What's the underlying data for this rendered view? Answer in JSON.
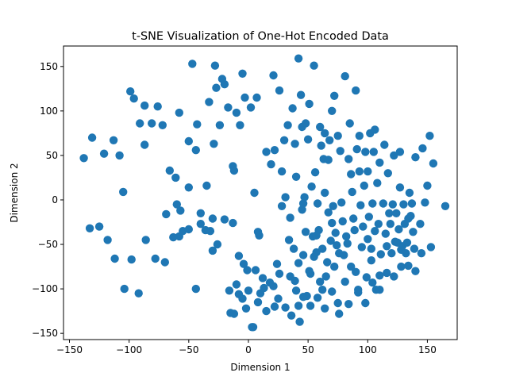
{
  "chart_data": {
    "type": "scatter",
    "title": "t-SNE Visualization of One-Hot Encoded Data",
    "xlabel": "Dimension 1",
    "ylabel": "Dimension 2",
    "xlim": [
      -155,
      175
    ],
    "ylim": [
      -157,
      173
    ],
    "xticks": [
      -150,
      -100,
      -50,
      0,
      50,
      100,
      150
    ],
    "yticks": [
      -150,
      -100,
      -50,
      0,
      50,
      100,
      150
    ],
    "xtick_labels": [
      "−150",
      "−100",
      "−50",
      "0",
      "50",
      "100",
      "150"
    ],
    "ytick_labels": [
      "−150",
      "−100",
      "−50",
      "0",
      "50",
      "100",
      "150"
    ],
    "grid": false,
    "legend": "none",
    "point_color": "#1f77b4",
    "series": [
      {
        "points": [
          [
            -138,
            47
          ],
          [
            -131,
            70
          ],
          [
            -121,
            52
          ],
          [
            -113,
            67
          ],
          [
            -108,
            50
          ],
          [
            -105,
            9
          ],
          [
            -99,
            122
          ],
          [
            -96,
            114
          ],
          [
            -91,
            86
          ],
          [
            -87,
            106
          ],
          [
            -87,
            62
          ],
          [
            -81,
            86
          ],
          [
            -76,
            105
          ],
          [
            -72,
            84
          ],
          [
            -69,
            -16
          ],
          [
            -66,
            33
          ],
          [
            -61,
            25
          ],
          [
            -60,
            -5
          ],
          [
            -58,
            98
          ],
          [
            -58,
            -41
          ],
          [
            -55,
            -35
          ],
          [
            -50,
            14
          ],
          [
            -50,
            66
          ],
          [
            -47,
            153
          ],
          [
            -44,
            56
          ],
          [
            -43,
            85
          ],
          [
            -40,
            -15
          ],
          [
            -35,
            16
          ],
          [
            -33,
            110
          ],
          [
            -32,
            -35
          ],
          [
            -30,
            -57
          ],
          [
            -30,
            -21
          ],
          [
            -29,
            63
          ],
          [
            -28,
            151
          ],
          [
            -27,
            126
          ],
          [
            -24,
            84
          ],
          [
            -22,
            136
          ],
          [
            -20,
            130
          ],
          [
            -17,
            104
          ],
          [
            -15,
            -127
          ],
          [
            -13,
            38
          ],
          [
            -13,
            -26
          ],
          [
            -12,
            33
          ],
          [
            -10,
            98
          ],
          [
            -10,
            -95
          ],
          [
            -8,
            -106
          ],
          [
            -7,
            84
          ],
          [
            -5,
            -111
          ],
          [
            -5,
            142
          ],
          [
            -3,
            115
          ],
          [
            -2,
            -122
          ],
          [
            0,
            -102
          ],
          [
            2,
            104
          ],
          [
            3,
            -143
          ],
          [
            5,
            8
          ],
          [
            6,
            -79
          ],
          [
            7,
            115
          ],
          [
            8,
            -115
          ],
          [
            8,
            -36
          ],
          [
            9,
            -40
          ],
          [
            12,
            -88
          ],
          [
            13,
            -99
          ],
          [
            15,
            -125
          ],
          [
            15,
            54
          ],
          [
            19,
            40
          ],
          [
            21,
            140
          ],
          [
            21,
            -97
          ],
          [
            22,
            -120
          ],
          [
            22,
            56
          ],
          [
            24,
            -72
          ],
          [
            26,
            -83
          ],
          [
            26,
            123
          ],
          [
            28,
            32
          ],
          [
            28,
            -7
          ],
          [
            30,
            67
          ],
          [
            31,
            3
          ],
          [
            33,
            84
          ],
          [
            34,
            -45
          ],
          [
            35,
            -86
          ],
          [
            35,
            -20
          ],
          [
            37,
            103
          ],
          [
            38,
            -55
          ],
          [
            39,
            63
          ],
          [
            39,
            -91
          ],
          [
            40,
            -102
          ],
          [
            40,
            26
          ],
          [
            42,
            -119
          ],
          [
            42,
            159
          ],
          [
            42,
            -71
          ],
          [
            43,
            -137
          ],
          [
            44,
            118
          ],
          [
            45,
            -11
          ],
          [
            45,
            82
          ],
          [
            46,
            -62
          ],
          [
            46,
            -4
          ],
          [
            47,
            3
          ],
          [
            48,
            -36
          ],
          [
            48,
            86
          ],
          [
            49,
            -108
          ],
          [
            50,
            68
          ],
          [
            51,
            -80
          ],
          [
            51,
            108
          ],
          [
            52,
            -83
          ],
          [
            53,
            15
          ],
          [
            54,
            -41
          ],
          [
            55,
            -64
          ],
          [
            55,
            151
          ],
          [
            56,
            31
          ],
          [
            57,
            -40
          ],
          [
            57,
            -59
          ],
          [
            58,
            -4
          ],
          [
            59,
            -34
          ],
          [
            60,
            82
          ],
          [
            61,
            61
          ],
          [
            62,
            -55
          ],
          [
            62,
            -101
          ],
          [
            63,
            46
          ],
          [
            64,
            8
          ],
          [
            64,
            75
          ],
          [
            65,
            -86
          ],
          [
            66,
            -70
          ],
          [
            67,
            -14
          ],
          [
            67,
            45
          ],
          [
            68,
            67
          ],
          [
            69,
            -46
          ],
          [
            70,
            -26
          ],
          [
            70,
            100
          ],
          [
            71,
            -7
          ],
          [
            72,
            -75
          ],
          [
            72,
            117
          ],
          [
            73,
            -37
          ],
          [
            74,
            -51
          ],
          [
            75,
            -116
          ],
          [
            75,
            72
          ],
          [
            76,
            -60
          ],
          [
            77,
            55
          ],
          [
            78,
            -3
          ],
          [
            79,
            -24
          ],
          [
            80,
            -62
          ],
          [
            81,
            139
          ],
          [
            81,
            -92
          ],
          [
            82,
            -41
          ],
          [
            83,
            -49
          ],
          [
            84,
            46
          ],
          [
            85,
            86
          ],
          [
            86,
            -75
          ],
          [
            86,
            29
          ],
          [
            87,
            9
          ],
          [
            88,
            -21
          ],
          [
            89,
            -34
          ],
          [
            90,
            -81
          ],
          [
            90,
            123
          ],
          [
            91,
            57
          ],
          [
            92,
            -101
          ],
          [
            93,
            72
          ],
          [
            93,
            32
          ],
          [
            94,
            -6
          ],
          [
            95,
            -53
          ],
          [
            96,
            -30
          ],
          [
            97,
            16
          ],
          [
            98,
            54
          ],
          [
            99,
            -87
          ],
          [
            100,
            -44
          ],
          [
            100,
            32
          ],
          [
            101,
            -19
          ],
          [
            102,
            75
          ],
          [
            103,
            -68
          ],
          [
            103,
            -55
          ],
          [
            104,
            -4
          ],
          [
            105,
            54
          ],
          [
            106,
            -35
          ],
          [
            106,
            79
          ],
          [
            107,
            -101
          ],
          [
            108,
            19
          ],
          [
            109,
            -27
          ],
          [
            110,
            -85
          ],
          [
            110,
            42
          ],
          [
            111,
            -61
          ],
          [
            113,
            -4
          ],
          [
            114,
            62
          ],
          [
            115,
            -38
          ],
          [
            116,
            -52
          ],
          [
            117,
            30
          ],
          [
            118,
            -15
          ],
          [
            119,
            -27
          ],
          [
            120,
            -60
          ],
          [
            121,
            -5
          ],
          [
            122,
            50
          ],
          [
            123,
            -47
          ],
          [
            124,
            -15
          ],
          [
            125,
            -48
          ],
          [
            126,
            -33
          ],
          [
            127,
            14
          ],
          [
            127,
            54
          ],
          [
            128,
            -56
          ],
          [
            129,
            -52
          ],
          [
            130,
            -5
          ],
          [
            131,
            -27
          ],
          [
            132,
            -60
          ],
          [
            133,
            -48
          ],
          [
            134,
            -21
          ],
          [
            135,
            8
          ],
          [
            136,
            -18
          ],
          [
            137,
            -4
          ],
          [
            138,
            -36
          ],
          [
            139,
            -55
          ],
          [
            140,
            48
          ],
          [
            144,
            -27
          ],
          [
            146,
            58
          ],
          [
            148,
            -3
          ],
          [
            150,
            16
          ],
          [
            153,
            -53
          ],
          [
            152,
            72
          ],
          [
            155,
            41
          ],
          [
            165,
            -7
          ],
          [
            -133,
            -32
          ],
          [
            -125,
            -30
          ],
          [
            -118,
            -45
          ],
          [
            -112,
            -66
          ],
          [
            -104,
            -100
          ],
          [
            -98,
            -67
          ],
          [
            -92,
            -105
          ],
          [
            -86,
            -45
          ],
          [
            -78,
            -66
          ],
          [
            -70,
            -70
          ],
          [
            -63,
            -42
          ],
          [
            -57,
            -12
          ],
          [
            -50,
            -33
          ],
          [
            -44,
            -100
          ],
          [
            -40,
            -27
          ],
          [
            -36,
            -34
          ],
          [
            -26,
            -50
          ],
          [
            -20,
            -22
          ],
          [
            -16,
            -102
          ],
          [
            -12,
            -128
          ],
          [
            -8,
            -63
          ],
          [
            -4,
            -72
          ],
          [
            -1,
            -79
          ],
          [
            4,
            -143
          ],
          [
            10,
            -105
          ],
          [
            18,
            -93
          ],
          [
            25,
            -111
          ],
          [
            31,
            -121
          ],
          [
            36,
            -130
          ],
          [
            46,
            -109
          ],
          [
            52,
            -119
          ],
          [
            58,
            -110
          ],
          [
            60,
            -92
          ],
          [
            64,
            -122
          ],
          [
            70,
            -103
          ],
          [
            76,
            -128
          ],
          [
            84,
            -117
          ],
          [
            92,
            -104
          ],
          [
            98,
            -116
          ],
          [
            104,
            -93
          ],
          [
            110,
            -101
          ],
          [
            116,
            -82
          ],
          [
            122,
            -86
          ],
          [
            128,
            -75
          ],
          [
            134,
            -74
          ],
          [
            140,
            -80
          ],
          [
            145,
            -60
          ]
        ]
      }
    ]
  }
}
